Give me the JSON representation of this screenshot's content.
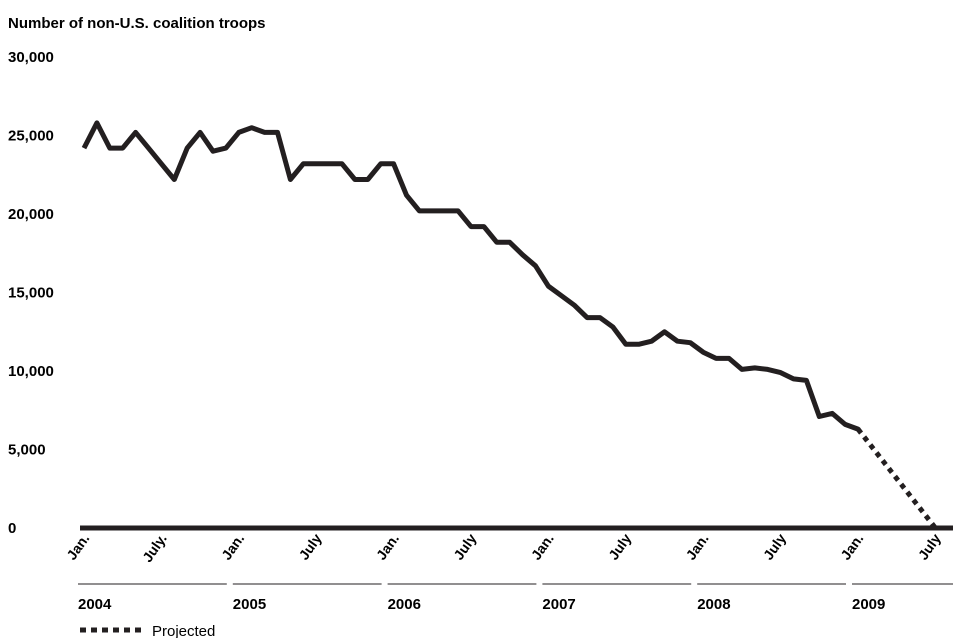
{
  "chart_data": {
    "type": "line",
    "title": "Number of non-U.S. coalition troops",
    "ylim": [
      0,
      30000
    ],
    "y_ticks": [
      "0",
      "5,000",
      "10,000",
      "15,000",
      "20,000",
      "25,000",
      "30,000"
    ],
    "x_ticks": [
      "Jan.",
      "July.",
      "Jan.",
      "July",
      "Jan.",
      "July",
      "Jan.",
      "July",
      "Jan.",
      "July",
      "Jan.",
      "July"
    ],
    "years": [
      "2004",
      "2005",
      "2006",
      "2007",
      "2008",
      "2009"
    ],
    "legend": {
      "projected_label": "Projected"
    },
    "grid": false,
    "colors": {
      "line": "#231f20",
      "axis": "#231f20"
    },
    "series": [
      {
        "style": "solid",
        "x": [
          "2004-01",
          "2004-02",
          "2004-03",
          "2004-04",
          "2004-05",
          "2004-06",
          "2004-07",
          "2004-08",
          "2004-09",
          "2004-10",
          "2004-11",
          "2004-12",
          "2005-01",
          "2005-02",
          "2005-03",
          "2005-04",
          "2005-05",
          "2005-06",
          "2005-07",
          "2005-08",
          "2005-09",
          "2005-10",
          "2005-11",
          "2005-12",
          "2006-01",
          "2006-02",
          "2006-03",
          "2006-04",
          "2006-05",
          "2006-06",
          "2006-07",
          "2006-08",
          "2006-09",
          "2006-10",
          "2006-11",
          "2006-12",
          "2007-01",
          "2007-02",
          "2007-03",
          "2007-04",
          "2007-05",
          "2007-06",
          "2007-07",
          "2007-08",
          "2007-09",
          "2007-10",
          "2007-11",
          "2007-12",
          "2008-01",
          "2008-02",
          "2008-03",
          "2008-04",
          "2008-05",
          "2008-06",
          "2008-07",
          "2008-08",
          "2008-09",
          "2008-10",
          "2008-11",
          "2008-12"
        ],
        "values": [
          24200,
          25800,
          24200,
          24200,
          25200,
          24200,
          23200,
          22200,
          24200,
          25200,
          24000,
          24200,
          25200,
          25500,
          25200,
          25200,
          22200,
          23200,
          23200,
          23200,
          23200,
          22200,
          22200,
          23200,
          23200,
          21200,
          20200,
          20200,
          20200,
          20200,
          19200,
          19200,
          18200,
          18200,
          17400,
          16700,
          15400,
          14800,
          14200,
          13400,
          13400,
          12800,
          11700,
          11700,
          11900,
          12500,
          11900,
          11800,
          11200,
          10800,
          10800,
          10100,
          10200,
          10100,
          9900,
          9500,
          9400,
          7100,
          7300,
          6600
        ],
        "values_cont": [
          6300
        ]
      },
      {
        "style": "dotted",
        "x": [
          "2009-01",
          "2009-07"
        ],
        "values": [
          6300,
          0
        ]
      }
    ]
  }
}
